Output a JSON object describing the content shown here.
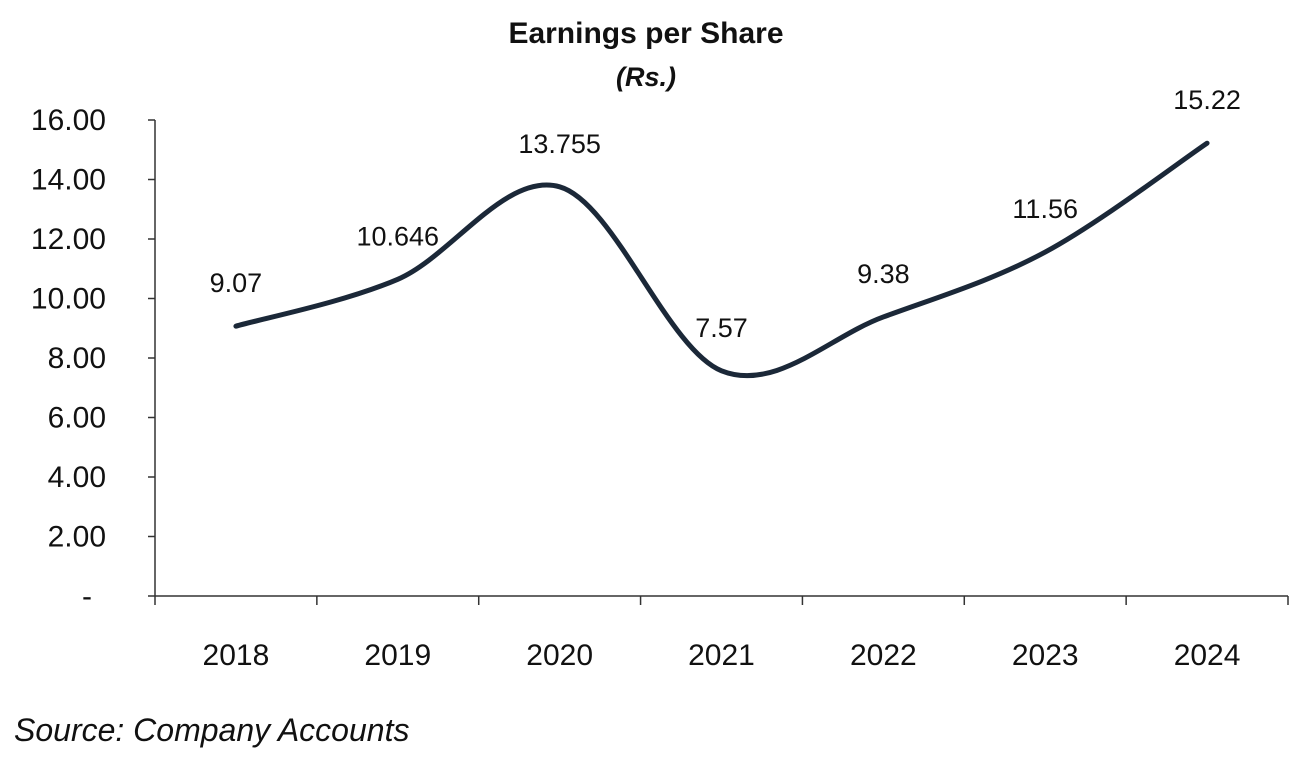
{
  "chart_data": {
    "type": "line",
    "title": "Earnings per Share",
    "subtitle": "(Rs.)",
    "categories": [
      "2018",
      "2019",
      "2020",
      "2021",
      "2022",
      "2023",
      "2024"
    ],
    "values": [
      9.07,
      10.646,
      13.755,
      7.57,
      9.38,
      11.56,
      15.22
    ],
    "data_labels": [
      "9.07",
      "10.646",
      "13.755",
      "7.57",
      "9.38",
      "11.56",
      "15.22"
    ],
    "yticks": [
      "-",
      "2.00",
      "4.00",
      "6.00",
      "8.00",
      "10.00",
      "12.00",
      "14.00",
      "16.00"
    ],
    "ylim": [
      0,
      16
    ],
    "grid": false,
    "legend": "none",
    "line_color": "#1b2838"
  },
  "source": "Source: Company Accounts"
}
